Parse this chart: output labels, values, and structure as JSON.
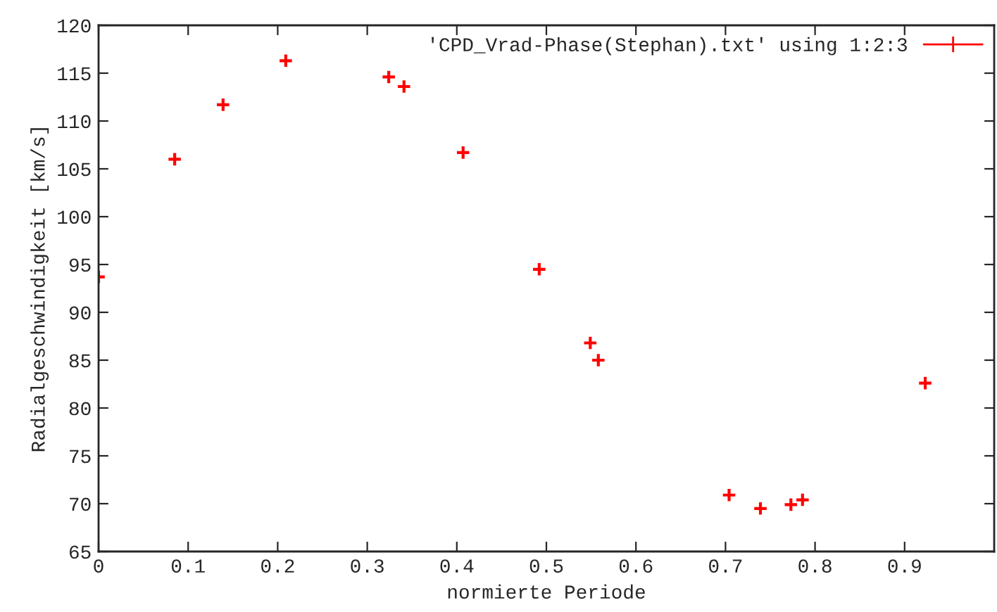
{
  "chart_data": {
    "type": "scatter",
    "xlabel": "normierte Periode",
    "ylabel": "Radialgeschwindigkeit [km/s]",
    "xlim": [
      0,
      1
    ],
    "xticks": [
      0,
      0.1,
      0.2,
      0.3,
      0.4,
      0.5,
      0.6,
      0.7,
      0.8,
      0.9
    ],
    "ylim": [
      65,
      120
    ],
    "yticks": [
      65,
      70,
      75,
      80,
      85,
      90,
      95,
      100,
      105,
      110,
      115,
      120
    ],
    "grid": false,
    "legend": "top right",
    "marker": "cross",
    "series": [
      {
        "name": "'CPD_Vrad-Phase(Stephan).txt' using 1:2:3",
        "color": "#ff0000",
        "x": [
          0,
          0.085,
          0.139,
          0.209,
          0.324,
          0.341,
          0.407,
          0.492,
          0.549,
          0.558,
          0.704,
          0.739,
          0.773,
          0.786,
          0.923
        ],
        "values": [
          93.7,
          106.0,
          111.7,
          116.3,
          114.6,
          113.6,
          106.7,
          94.5,
          86.8,
          85.0,
          70.9,
          69.5,
          69.9,
          70.4,
          82.6
        ]
      }
    ]
  }
}
